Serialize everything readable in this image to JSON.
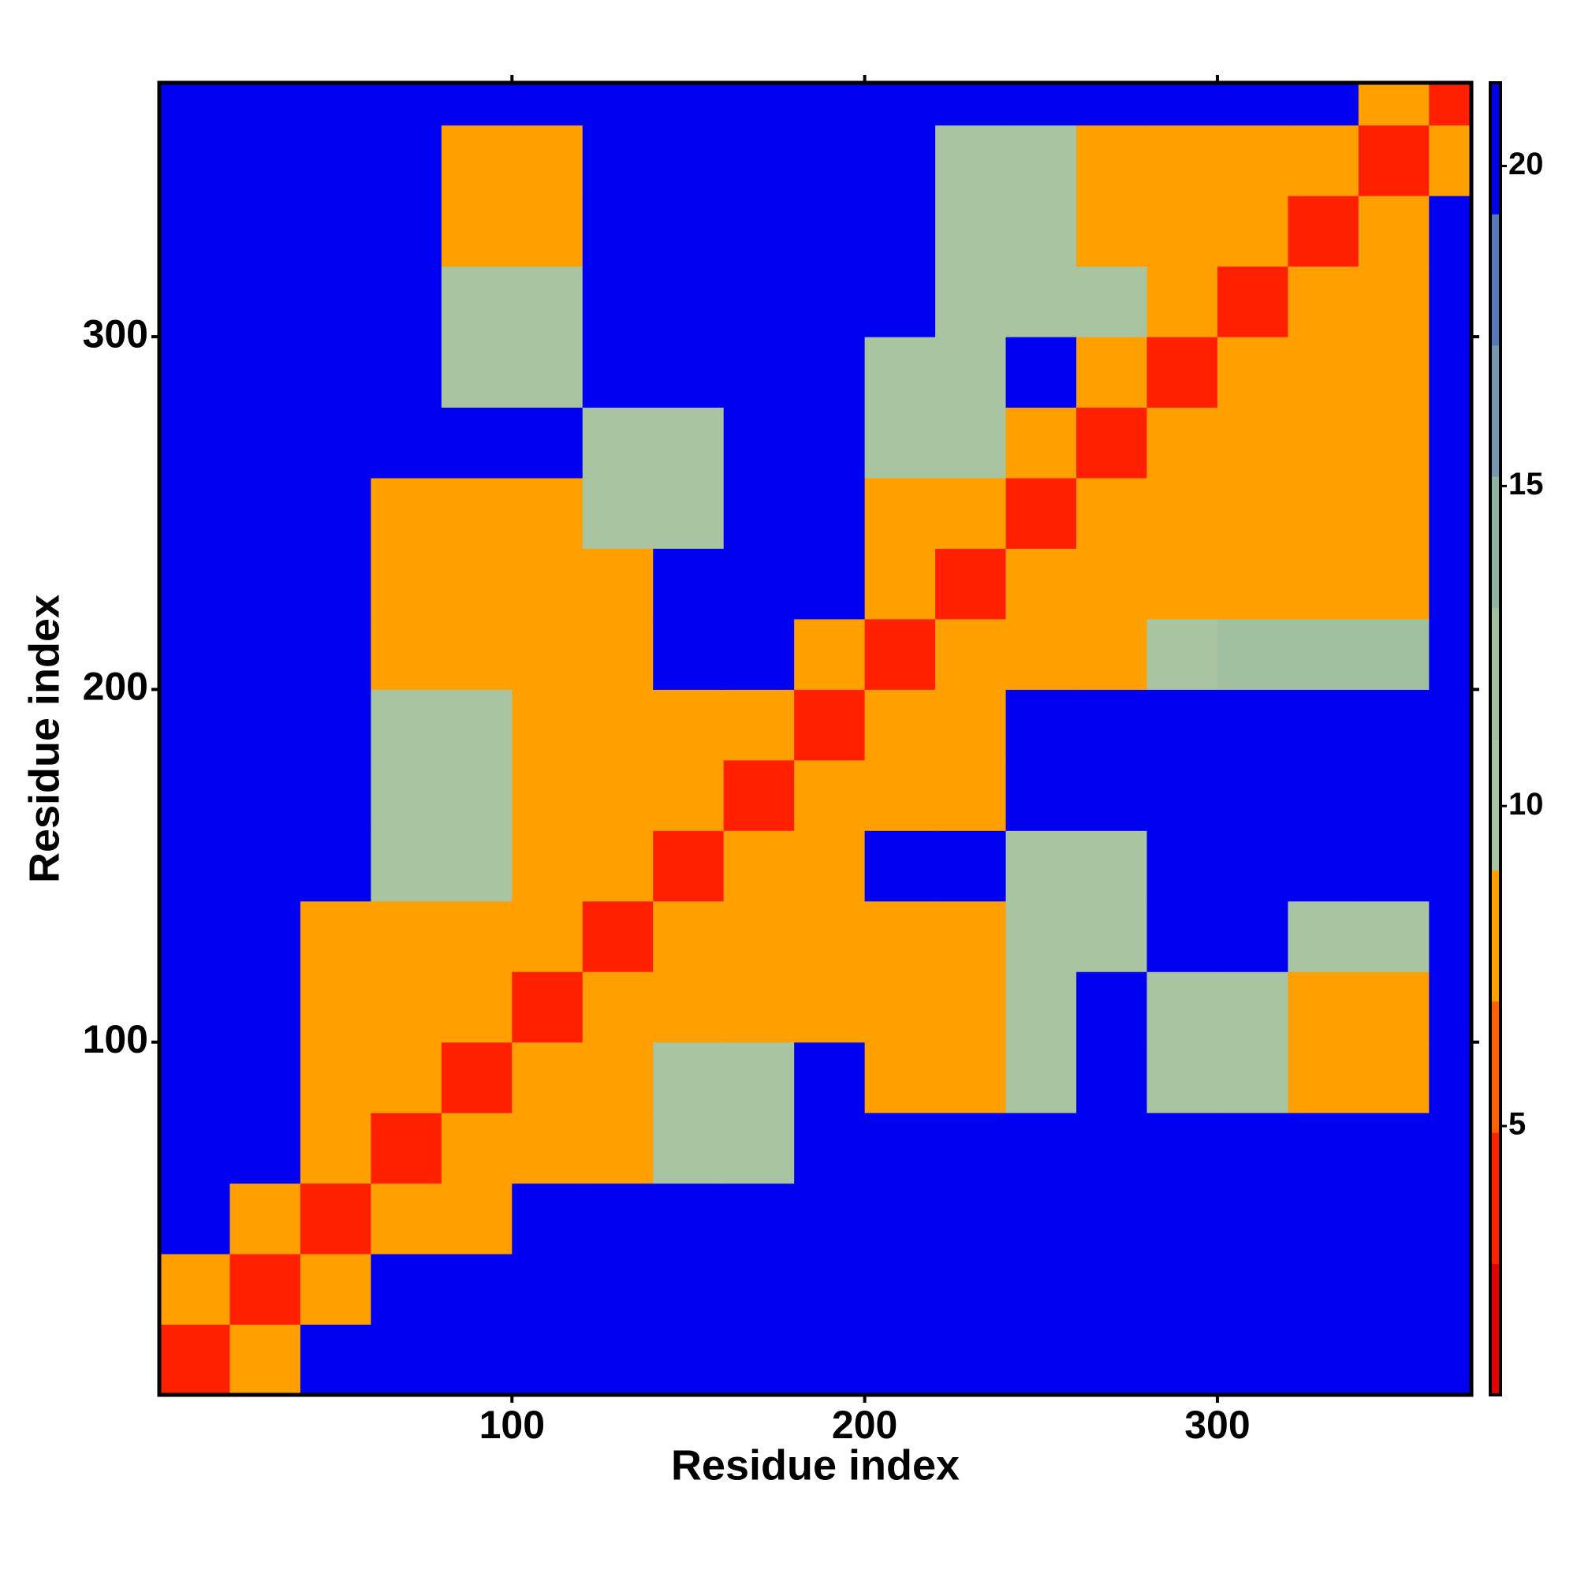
{
  "chart_data": {
    "type": "heatmap",
    "xlabel": "Residue index",
    "ylabel": "Residue index",
    "xlim": [
      0,
      372
    ],
    "ylim": [
      0,
      372
    ],
    "xticks": [
      100,
      200,
      300
    ],
    "yticks": [
      100,
      200,
      300
    ],
    "xbins": [
      0,
      20,
      40,
      60,
      80,
      100,
      120,
      140,
      160,
      180,
      200,
      220,
      240,
      260,
      280,
      300,
      320,
      340,
      360,
      372
    ],
    "ybins": [
      0,
      20,
      40,
      60,
      80,
      100,
      120,
      140,
      160,
      180,
      200,
      220,
      240,
      260,
      280,
      300,
      320,
      340,
      360,
      372
    ],
    "clim": [
      0.8,
      21.3
    ],
    "cticks": [
      5,
      10,
      15,
      20
    ],
    "colors": [
      "#e00000",
      "#ff2000",
      "#ff6000",
      "#ffa000",
      "#a8c4a0",
      "#a0c0a0",
      "#90b4a4",
      "#7898b0",
      "#5878b8",
      "#0000f0"
    ],
    "z": [
      [
        3,
        9,
        21,
        21,
        21,
        21,
        21,
        21,
        21,
        21,
        21,
        21,
        21,
        21,
        21,
        21,
        21,
        21,
        21
      ],
      [
        9,
        3,
        9,
        21,
        21,
        21,
        21,
        21,
        21,
        21,
        21,
        21,
        21,
        21,
        21,
        21,
        21,
        21,
        21
      ],
      [
        21,
        9,
        3,
        9,
        9,
        21,
        21,
        21,
        21,
        21,
        21,
        21,
        21,
        21,
        21,
        21,
        21,
        21,
        21
      ],
      [
        21,
        21,
        9,
        3,
        9,
        9,
        9,
        10,
        10,
        21,
        21,
        21,
        21,
        21,
        21,
        21,
        21,
        21,
        21
      ],
      [
        21,
        21,
        9,
        9,
        3,
        9,
        9,
        10,
        10,
        21,
        8,
        8,
        10,
        21,
        11,
        11,
        9,
        9,
        21
      ],
      [
        21,
        21,
        8,
        8,
        8,
        3,
        9,
        8,
        8,
        8,
        8,
        8,
        10,
        21,
        11,
        11,
        9,
        9,
        21
      ],
      [
        21,
        21,
        8,
        8,
        8,
        8,
        3,
        8,
        8,
        8,
        9,
        9,
        10,
        10,
        21,
        21,
        11,
        11,
        21
      ],
      [
        21,
        21,
        21,
        10,
        10,
        8,
        8,
        3,
        8,
        8,
        21,
        21,
        10,
        10,
        21,
        21,
        21,
        21,
        21
      ],
      [
        21,
        21,
        21,
        10,
        10,
        8,
        8,
        8,
        3,
        8,
        8,
        8,
        21,
        21,
        21,
        21,
        21,
        21,
        21
      ],
      [
        21,
        21,
        21,
        10,
        10,
        8,
        8,
        8,
        8,
        3,
        8,
        8,
        21,
        21,
        21,
        21,
        21,
        21,
        21
      ],
      [
        21,
        21,
        21,
        8,
        8,
        8,
        8,
        21,
        21,
        9,
        3,
        8,
        8,
        8,
        10,
        12,
        12,
        12,
        21
      ],
      [
        21,
        21,
        21,
        8,
        8,
        8,
        8,
        21,
        21,
        21,
        8,
        3,
        8,
        8,
        8,
        9,
        9,
        9,
        21
      ],
      [
        21,
        21,
        21,
        9,
        9,
        9,
        10,
        10,
        21,
        21,
        8,
        8,
        3,
        8,
        8,
        9,
        9,
        9,
        21
      ],
      [
        21,
        21,
        21,
        21,
        21,
        21,
        10,
        10,
        21,
        21,
        10,
        10,
        8,
        3,
        8,
        9,
        9,
        9,
        21
      ],
      [
        21,
        21,
        21,
        21,
        10,
        10,
        21,
        21,
        21,
        21,
        10,
        10,
        21,
        9,
        3,
        9,
        8,
        8,
        21
      ],
      [
        21,
        21,
        21,
        21,
        10,
        10,
        21,
        21,
        21,
        21,
        21,
        10,
        10,
        10,
        9,
        3,
        8,
        8,
        21
      ],
      [
        21,
        21,
        21,
        21,
        8,
        8,
        21,
        21,
        21,
        21,
        21,
        10,
        10,
        8,
        8,
        8,
        3,
        8,
        21
      ],
      [
        21,
        21,
        21,
        21,
        8,
        8,
        21,
        21,
        21,
        21,
        21,
        10,
        10,
        8,
        8,
        8,
        9,
        3,
        9
      ],
      [
        21,
        21,
        21,
        21,
        21,
        21,
        21,
        21,
        21,
        21,
        21,
        21,
        21,
        21,
        21,
        21,
        21,
        9,
        3
      ]
    ]
  }
}
